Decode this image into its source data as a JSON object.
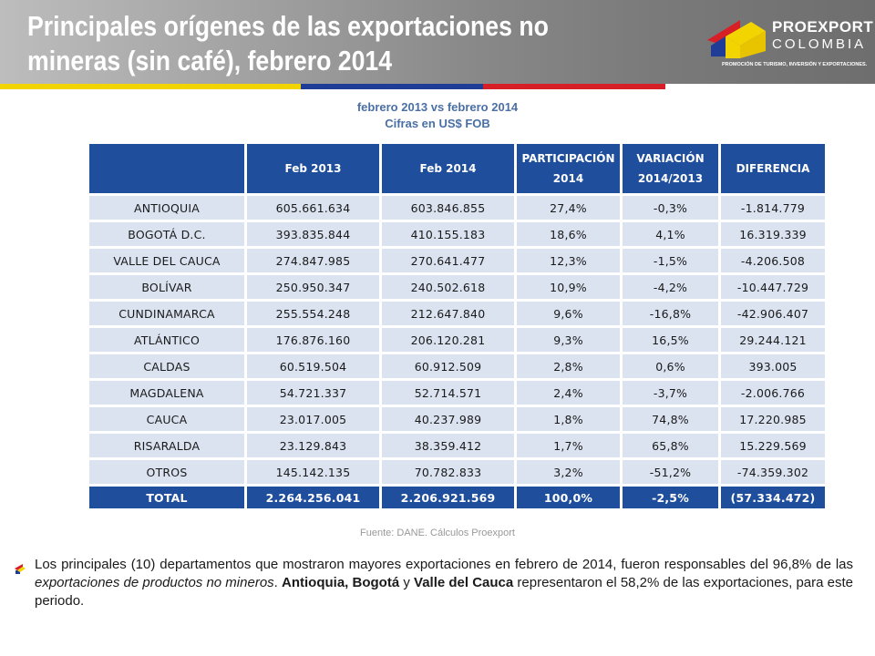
{
  "header": {
    "title": "Principales orígenes de las exportaciones no mineras (sin café), febrero 2014"
  },
  "logo": {
    "word1": "PROEXPORT",
    "word2": "COLOMBIA",
    "tagline": "PROMOCIÓN DE TURISMO, INVERSIÓN Y EXPORTACIONES."
  },
  "subtitle": {
    "line1": "febrero 2013 vs febrero 2014",
    "line2": "Cifras en US$ FOB"
  },
  "table": {
    "headers": [
      "",
      "Feb 2013",
      "Feb 2014",
      "PARTICIPACIÓN 2014",
      "VARIACIÓN 2014/2013",
      "DIFERENCIA"
    ],
    "rows": [
      [
        "ANTIOQUIA",
        "605.661.634",
        "603.846.855",
        "27,4%",
        "-0,3%",
        "-1.814.779"
      ],
      [
        "BOGOTÁ D.C.",
        "393.835.844",
        "410.155.183",
        "18,6%",
        "4,1%",
        "16.319.339"
      ],
      [
        "VALLE DEL CAUCA",
        "274.847.985",
        "270.641.477",
        "12,3%",
        "-1,5%",
        "-4.206.508"
      ],
      [
        "BOLÍVAR",
        "250.950.347",
        "240.502.618",
        "10,9%",
        "-4,2%",
        "-10.447.729"
      ],
      [
        "CUNDINAMARCA",
        "255.554.248",
        "212.647.840",
        "9,6%",
        "-16,8%",
        "-42.906.407"
      ],
      [
        "ATLÁNTICO",
        "176.876.160",
        "206.120.281",
        "9,3%",
        "16,5%",
        "29.244.121"
      ],
      [
        "CALDAS",
        "60.519.504",
        "60.912.509",
        "2,8%",
        "0,6%",
        "393.005"
      ],
      [
        "MAGDALENA",
        "54.721.337",
        "52.714.571",
        "2,4%",
        "-3,7%",
        "-2.006.766"
      ],
      [
        "CAUCA",
        "23.017.005",
        "40.237.989",
        "1,8%",
        "74,8%",
        "17.220.985"
      ],
      [
        "RISARALDA",
        "23.129.843",
        "38.359.412",
        "1,7%",
        "65,8%",
        "15.229.569"
      ],
      [
        "OTROS",
        "145.142.135",
        "70.782.833",
        "3,2%",
        "-51,2%",
        "-74.359.302"
      ]
    ],
    "total": [
      "TOTAL",
      "2.264.256.041",
      "2.206.921.569",
      "100,0%",
      "-2,5%",
      "(57.334.472)"
    ]
  },
  "source": "Fuente: DANE. Cálculos Proexport",
  "paragraph": {
    "p1": "Los principales (10) departamentos que mostraron mayores exportaciones en febrero de 2014, fueron responsables del 96,8% de las ",
    "p2": "exportaciones de productos no mineros",
    "p3": ". ",
    "p4": "Antioquia, Bogotá",
    "p5": " y ",
    "p6": "Valle del Cauca",
    "p7": " representaron el 58,2% de las exportaciones, para este periodo."
  },
  "colors": {
    "header_dark": "#6e6e6e",
    "table_header": "#1f4e9c",
    "table_cell": "#dbe3f1",
    "flag_yellow": "#f2d500",
    "flag_blue": "#1f3d96",
    "flag_red": "#d61f26"
  }
}
